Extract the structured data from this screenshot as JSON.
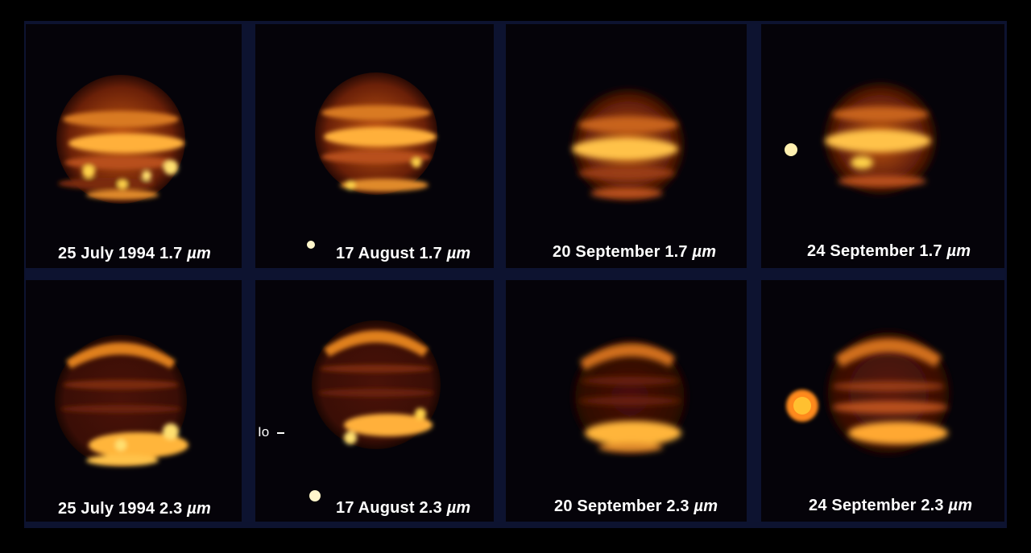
{
  "image": {
    "subject": "Infrared images of Jupiter showing comet impact sites fading over time",
    "panels": [
      {
        "date": "25 July 1994",
        "wavelength": "1.7",
        "unit": "µm"
      },
      {
        "date": "17 August",
        "wavelength": "1.7",
        "unit": "µm"
      },
      {
        "date": "20 September",
        "wavelength": "1.7",
        "unit": "µm"
      },
      {
        "date": "24 September",
        "wavelength": "1.7",
        "unit": "µm"
      },
      {
        "date": "25 July 1994",
        "wavelength": "2.3",
        "unit": "µm"
      },
      {
        "date": "17 August",
        "wavelength": "2.3",
        "unit": "µm"
      },
      {
        "date": "20 September",
        "wavelength": "2.3",
        "unit": "µm"
      },
      {
        "date": "24 September",
        "wavelength": "2.3",
        "unit": "µm"
      }
    ],
    "io_label": "Io",
    "colors": {
      "background": "#000000",
      "frame": "#0d1330",
      "planet_bright": "#ffd24a",
      "planet_dark": "#3a0e08"
    }
  }
}
